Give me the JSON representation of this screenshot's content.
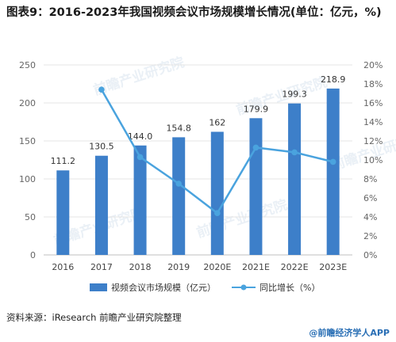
{
  "title": "图表9：2016-2023年我国视频会议市场规模增长情况(单位：亿元，%)",
  "source": "资料来源：iResearch  前瞻产业研究院整理",
  "brand": "@前瞻经济学人APP",
  "watermark": "前瞻产业研究院",
  "colors": {
    "bar": "#3d7fc9",
    "line": "#4aa3de",
    "grid": "#e4e4e4",
    "axis_text": "#666666"
  },
  "chart_data": {
    "type": "bar",
    "categories": [
      "2016",
      "2017",
      "2018",
      "2019",
      "2020E",
      "2021E",
      "2022E",
      "2023E"
    ],
    "series": [
      {
        "name": "视频会议市场规模（亿元）",
        "type": "bar",
        "axis": "left",
        "values": [
          111.2,
          130.5,
          144.0,
          154.8,
          162,
          179.9,
          199.3,
          218.9
        ],
        "labels": [
          "111.2",
          "130.5",
          "144.0",
          "154.8",
          "162",
          "179.9",
          "199.3",
          "218.9"
        ]
      },
      {
        "name": "同比增长（%）",
        "type": "line",
        "axis": "right",
        "values": [
          null,
          17.4,
          10.3,
          7.5,
          4.4,
          11.3,
          10.8,
          9.8
        ]
      }
    ],
    "ylim_left": [
      0,
      250
    ],
    "yticks_left": [
      "0",
      "50",
      "100",
      "150",
      "200",
      "250"
    ],
    "ylim_right": [
      0,
      20
    ],
    "yticks_right": [
      "0%",
      "2%",
      "4%",
      "6%",
      "8%",
      "10%",
      "12%",
      "14%",
      "16%",
      "18%",
      "20%"
    ],
    "grid": true,
    "legend_position": "bottom"
  }
}
